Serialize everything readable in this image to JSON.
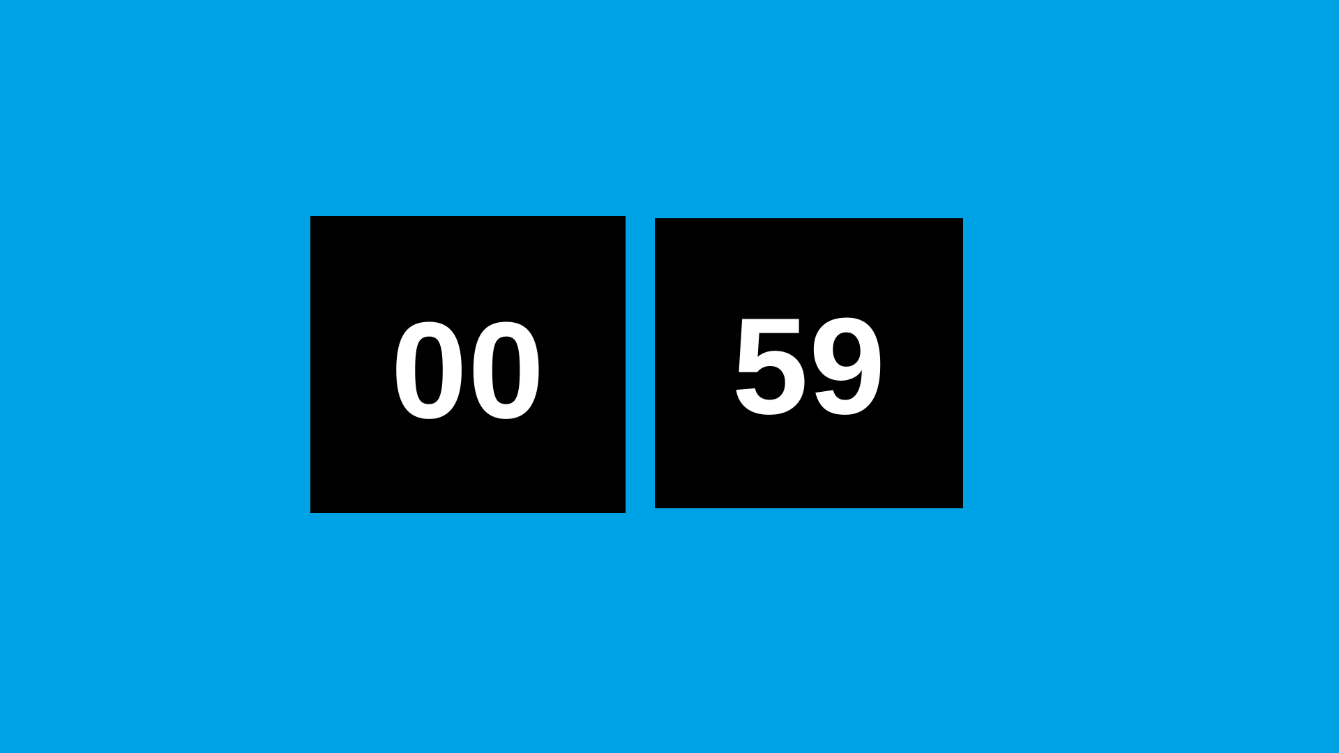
{
  "timer": {
    "left_value": "00",
    "right_value": "59"
  },
  "colors": {
    "background": "#00a2e6",
    "box": "#000000",
    "text": "#ffffff"
  }
}
